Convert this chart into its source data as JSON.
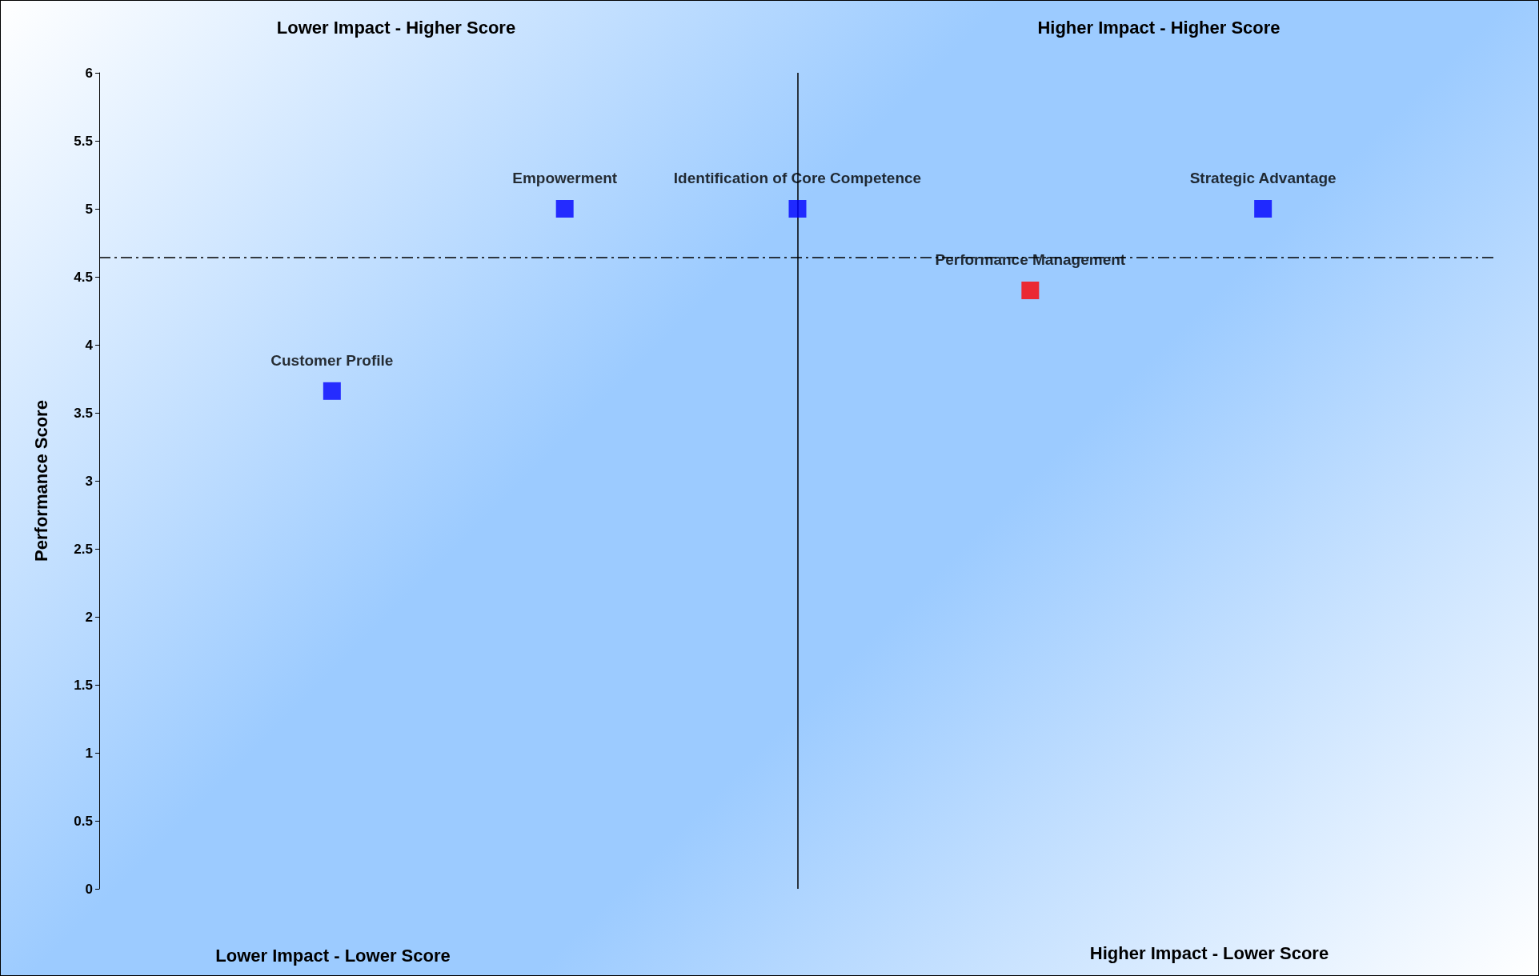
{
  "chart_data": {
    "type": "scatter",
    "ylabel": "Performance Score",
    "categories": [
      null,
      null,
      null,
      null,
      null,
      null,
      null
    ],
    "ylim": [
      0,
      6
    ],
    "yticks": [
      0,
      0.5,
      1,
      1.5,
      2,
      2.5,
      3,
      3.5,
      4,
      4.5,
      5,
      5.5,
      6
    ],
    "tick_labels": "y",
    "grid": false,
    "legend": false,
    "marker": "square",
    "series": [
      {
        "name": "Customer Profile",
        "color": "#0000ff",
        "values": [
          null,
          3.66,
          null,
          null,
          null,
          null,
          null
        ]
      },
      {
        "name": "Empowerment",
        "color": "#0000ff",
        "values": [
          null,
          null,
          5,
          null,
          null,
          null,
          null
        ]
      },
      {
        "name": "Identification of Core Competence",
        "color": "#0000ff",
        "values": [
          null,
          null,
          null,
          5,
          null,
          null,
          null
        ]
      },
      {
        "name": "Performance Management",
        "color": "#ff0000",
        "values": [
          null,
          null,
          null,
          null,
          4.4,
          null,
          null
        ]
      },
      {
        "name": "Strategic Advantage",
        "color": "#0000ff",
        "values": [
          null,
          null,
          null,
          null,
          null,
          5,
          null
        ]
      }
    ],
    "ref_lines": [
      {
        "axis": "y",
        "value": 4.64,
        "color": "#000000",
        "line_style": "dashed"
      }
    ],
    "annotations": [
      "Lower Impact - Higher Score",
      "Higher Impact - Higher Score",
      "Lower Impact - Lower Score",
      "Higher Impact - Lower Score"
    ]
  }
}
